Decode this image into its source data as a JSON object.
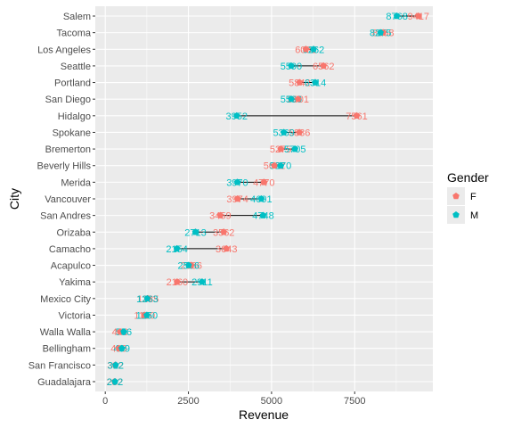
{
  "chart_data": {
    "type": "dumbbell",
    "title": "",
    "xlabel": "Revenue",
    "ylabel": "City",
    "xlim": [
      -300,
      9850
    ],
    "x_ticks": [
      0,
      2500,
      5000,
      7500
    ],
    "x_tick_labels": [
      "0",
      "2500",
      "5000",
      "7500"
    ],
    "grid": true,
    "legend": {
      "title": "Gender",
      "position": "right",
      "entries": [
        "F",
        "M"
      ]
    },
    "colors": {
      "F": "#f8766d",
      "M": "#00bfc4",
      "panel": "#ebebeb",
      "grid": "#ffffff",
      "segment": "#000000"
    },
    "categories": [
      "Salem",
      "Tacoma",
      "Los Angeles",
      "Seattle",
      "Portland",
      "San Diego",
      "Hidalgo",
      "Spokane",
      "Bremerton",
      "Beverly Hills",
      "Merida",
      "Vancouver",
      "San Andres",
      "Orizaba",
      "Camacho",
      "Acapulco",
      "Yakima",
      "Mexico City",
      "Victoria",
      "Walla Walla",
      "Bellingham",
      "San Francisco",
      "Guadalajara"
    ],
    "series": [
      {
        "name": "F",
        "values": [
          9417,
          8358,
          6032,
          6562,
          5842,
          5801,
          7561,
          5836,
          5275,
          5082,
          4770,
          3974,
          3459,
          3562,
          3643,
          2586,
          2160,
          1285,
          1180,
          446,
          409,
          302,
          282
        ]
      },
      {
        "name": "M",
        "values": [
          8768,
          8275,
          6262,
          5590,
          6314,
          5590,
          3952,
          5369,
          5705,
          5270,
          3970,
          4691,
          4748,
          2713,
          2154,
          2506,
          2911,
          1263,
          1250,
          556,
          499,
          312,
          292
        ]
      }
    ],
    "labels": {
      "F": [
        "9417",
        "8358",
        "6032",
        "6562",
        "5842",
        "5801",
        "7561",
        "5836",
        "5275",
        "5082",
        "4770",
        "3974",
        "3459",
        "3562",
        "3643",
        "2586",
        "2160",
        "1285",
        "1180",
        "446",
        "409",
        "302",
        "282"
      ],
      "M": [
        "8768",
        "8275",
        "6262",
        "5590",
        "6314",
        "5590",
        "3952",
        "5369",
        "5705",
        "5270",
        "3970",
        "4691",
        "4748",
        "2713",
        "2154",
        "2506",
        "2911",
        "1263",
        "1250",
        "556",
        "499",
        "312",
        "292"
      ]
    }
  }
}
